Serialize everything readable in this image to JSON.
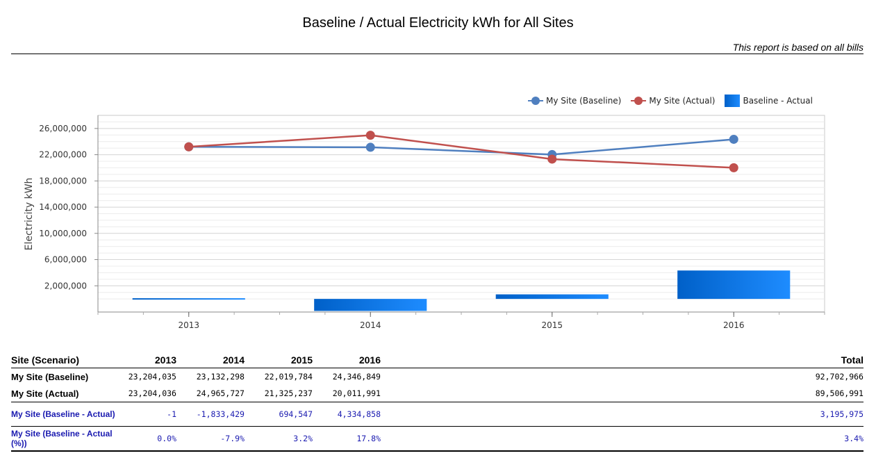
{
  "report": {
    "title": "Baseline / Actual Electricity kWh for All Sites",
    "subtitle": "This report is based on all bills"
  },
  "chart_data": {
    "type": "line",
    "categories": [
      "2013",
      "2014",
      "2015",
      "2016"
    ],
    "ylabel": "Electricity kWh",
    "ylim": [
      -2000000,
      28000000
    ],
    "yticks": [
      "2,000,000",
      "6,000,000",
      "10,000,000",
      "14,000,000",
      "18,000,000",
      "22,000,000",
      "26,000,000"
    ],
    "ytick_values": [
      2000000,
      6000000,
      10000000,
      14000000,
      18000000,
      22000000,
      26000000
    ],
    "grid": true,
    "legend_position": "top-right",
    "series": [
      {
        "name": "My Site (Baseline)",
        "kind": "line",
        "color": "#4f7fbf",
        "values": [
          23204035,
          23132298,
          22019784,
          24346849
        ]
      },
      {
        "name": "My Site (Actual)",
        "kind": "line",
        "color": "#c0504d",
        "values": [
          23204036,
          24965727,
          21325237,
          20011991
        ]
      },
      {
        "name": "Baseline - Actual",
        "kind": "bar",
        "color": "#0a72e0",
        "values": [
          -1,
          -1833429,
          694547,
          4334858
        ]
      }
    ]
  },
  "table": {
    "headers": [
      "Site (Scenario)",
      "2013",
      "2014",
      "2015",
      "2016",
      "Total"
    ],
    "rows": [
      {
        "name": "My Site (Baseline)",
        "values": [
          "23,204,035",
          "23,132,298",
          "22,019,784",
          "24,346,849"
        ],
        "total": "92,702,966"
      },
      {
        "name": "My Site (Actual)",
        "values": [
          "23,204,036",
          "24,965,727",
          "21,325,237",
          "20,011,991"
        ],
        "total": "89,506,991"
      },
      {
        "name": "My Site (Baseline - Actual)",
        "values": [
          "-1",
          "-1,833,429",
          "694,547",
          "4,334,858"
        ],
        "total": "3,195,975"
      },
      {
        "name": "My Site (Baseline - Actual (%))",
        "values": [
          "0.0%",
          "-7.9%",
          "3.2%",
          "17.8%"
        ],
        "total": "3.4%"
      }
    ]
  }
}
